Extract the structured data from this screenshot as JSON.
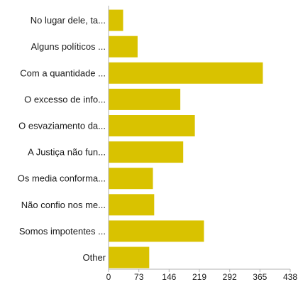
{
  "chart_data": {
    "type": "bar",
    "orientation": "horizontal",
    "categories": [
      "No lugar dele, ta...",
      "Alguns políticos ...",
      "Com a quantidade ...",
      "O excesso de info...",
      "O esvaziamento da...",
      "A Justiça não fun...",
      "Os media conforma...",
      "Não confio nos me...",
      "Somos impotentes ...",
      "Other"
    ],
    "values": [
      35,
      70,
      372,
      173,
      208,
      180,
      107,
      110,
      230,
      98
    ],
    "xlim": [
      0,
      438
    ],
    "xticks": [
      "0",
      "73",
      "146",
      "219",
      "292",
      "365",
      "438"
    ],
    "xtick_values": [
      0,
      73,
      146,
      219,
      292,
      365,
      438
    ],
    "grid": false,
    "legend": "none",
    "bar_color": "#d9c200",
    "axis_color": "#b0b0b0"
  }
}
